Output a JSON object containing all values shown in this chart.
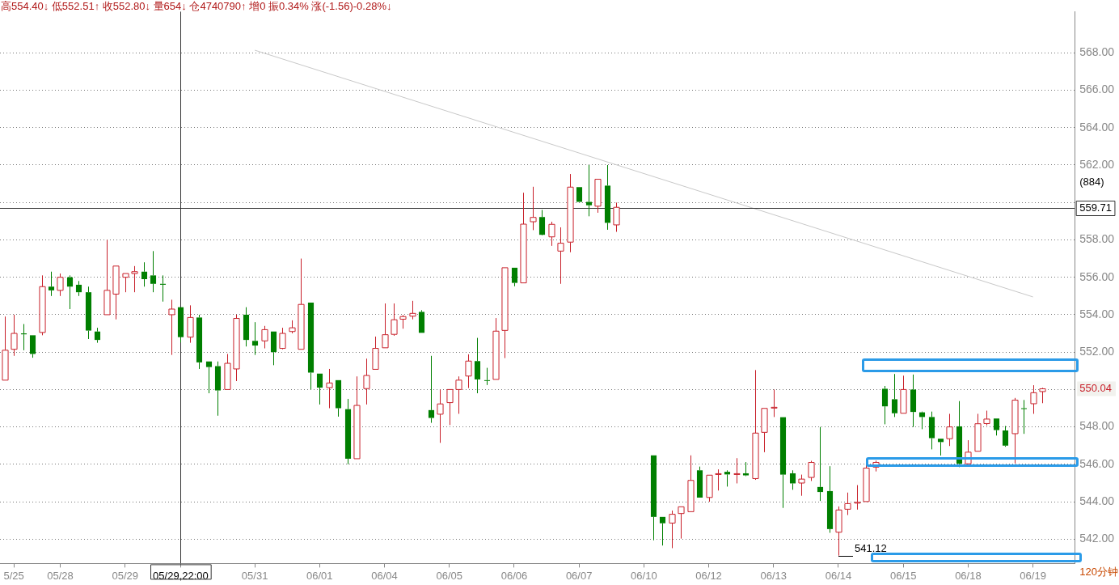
{
  "chart_data": {
    "type": "candlestick",
    "subtitle": "高554.40↓ 低552.51↑ 收552.80↓ 量654↓ 仓4740790↑ 增0 振0.34% 涨(-1.56)-0.28%↓",
    "categories": [
      null,
      "5/25",
      null,
      null,
      null,
      null,
      "05/28",
      null,
      null,
      null,
      null,
      null,
      null,
      "05/29",
      null,
      null,
      null,
      null,
      null,
      "05/29,22:00",
      null,
      null,
      null,
      null,
      null,
      null,
      null,
      "05/31",
      null,
      null,
      null,
      null,
      null,
      null,
      "06/01",
      null,
      null,
      null,
      null,
      null,
      null,
      "06/04",
      null,
      null,
      null,
      null,
      null,
      null,
      "06/05",
      null,
      null,
      null,
      null,
      null,
      null,
      "06/06",
      null,
      null,
      null,
      null,
      null,
      null,
      "06/07",
      null,
      null,
      null,
      null,
      null,
      null,
      "06/10",
      null,
      null,
      null,
      null,
      null,
      null,
      "06/12",
      null,
      null,
      null,
      null,
      null,
      null,
      "06/13",
      null,
      null,
      null,
      null,
      null,
      null,
      "06/14",
      null,
      null,
      null,
      null,
      null,
      null,
      "06/15",
      null,
      null,
      null,
      null,
      null,
      null,
      "06/18",
      null,
      null,
      null,
      null,
      null,
      null,
      "06/19",
      null,
      null,
      null,
      null
    ],
    "ohlc": [
      [
        550.5,
        553.9,
        550.5,
        552.1
      ],
      [
        552.15,
        554.0,
        551.8,
        553.0
      ],
      [
        553.0,
        553.5,
        552.1,
        552.95
      ],
      [
        552.9,
        552.9,
        551.7,
        551.9
      ],
      [
        553.05,
        556.1,
        552.9,
        555.5
      ],
      [
        555.5,
        556.3,
        555.0,
        555.3
      ],
      [
        555.3,
        556.2,
        555.0,
        556.0
      ],
      [
        556.0,
        556.1,
        554.3,
        555.5
      ],
      [
        555.6,
        555.8,
        555.0,
        555.2
      ],
      [
        555.2,
        555.5,
        552.7,
        553.15
      ],
      [
        553.1,
        553.3,
        552.5,
        552.65
      ],
      [
        554.0,
        558.0,
        554.0,
        555.3
      ],
      [
        555.1,
        556.6,
        553.75,
        556.6
      ],
      [
        556.0,
        556.2,
        555.2,
        556.2
      ],
      [
        556.2,
        556.6,
        555.2,
        556.3
      ],
      [
        556.3,
        556.8,
        555.5,
        555.9
      ],
      [
        556.1,
        557.4,
        555.2,
        555.65
      ],
      [
        555.65,
        556.1,
        554.7,
        555.6
      ],
      [
        554.0,
        554.8,
        551.85,
        554.3
      ],
      [
        554.4,
        554.4,
        552.51,
        552.8
      ],
      [
        552.8,
        554.5,
        552.5,
        553.85
      ],
      [
        553.85,
        554.0,
        551.1,
        551.45
      ],
      [
        551.5,
        551.5,
        549.8,
        551.2
      ],
      [
        551.25,
        551.5,
        548.6,
        549.95
      ],
      [
        550.0,
        551.9,
        550.0,
        551.4
      ],
      [
        551.1,
        554.0,
        550.45,
        553.8
      ],
      [
        554.0,
        554.4,
        552.3,
        552.65
      ],
      [
        552.6,
        553.6,
        551.85,
        552.35
      ],
      [
        552.6,
        553.4,
        552.2,
        553.2
      ],
      [
        553.1,
        553.1,
        551.3,
        552.0
      ],
      [
        552.2,
        553.3,
        552.15,
        553.0
      ],
      [
        553.1,
        553.7,
        553.0,
        553.3
      ],
      [
        552.15,
        557.0,
        552.15,
        554.55
      ],
      [
        554.65,
        554.65,
        550.0,
        550.9
      ],
      [
        550.85,
        550.85,
        549.2,
        550.1
      ],
      [
        550.1,
        551.1,
        549.0,
        550.35
      ],
      [
        550.5,
        550.5,
        548.55,
        549.0
      ],
      [
        548.95,
        549.5,
        546.0,
        546.3
      ],
      [
        546.3,
        550.7,
        546.3,
        549.15
      ],
      [
        550.05,
        551.65,
        549.2,
        550.75
      ],
      [
        551.08,
        552.83,
        551.08,
        552.2
      ],
      [
        552.23,
        554.6,
        552.23,
        552.93
      ],
      [
        552.95,
        554.6,
        552.87,
        553.73
      ],
      [
        553.76,
        553.98,
        553.25,
        553.9
      ],
      [
        553.92,
        554.74,
        553.75,
        554.07
      ],
      [
        554.15,
        554.24,
        553.03,
        553.03
      ],
      [
        548.9,
        551.8,
        548.22,
        548.48
      ],
      [
        548.68,
        550.0,
        547.15,
        549.23
      ],
      [
        549.3,
        550.0,
        548.1,
        550.0
      ],
      [
        550.0,
        550.7,
        548.7,
        550.5
      ],
      [
        550.72,
        551.88,
        550.08,
        551.52
      ],
      [
        551.52,
        552.76,
        549.8,
        550.54
      ],
      [
        550.5,
        551.16,
        550.24,
        550.48
      ],
      [
        550.54,
        553.82,
        550.54,
        553.12
      ],
      [
        553.16,
        556.51,
        551.68,
        556.51
      ],
      [
        556.51,
        556.51,
        555.52,
        555.7
      ],
      [
        555.7,
        560.52,
        555.7,
        558.84
      ],
      [
        558.97,
        560.84,
        558.52,
        559.2
      ],
      [
        559.22,
        559.6,
        558.24,
        558.27
      ],
      [
        558.16,
        558.97,
        557.68,
        558.83
      ],
      [
        557.4,
        558.67,
        555.65,
        557.82
      ],
      [
        557.88,
        561.52,
        557.34,
        560.82
      ],
      [
        560.82,
        560.82,
        560.03,
        560.03
      ],
      [
        560.03,
        562.0,
        559.26,
        559.85
      ],
      [
        559.8,
        561.24,
        559.45,
        561.24
      ],
      [
        560.9,
        562.0,
        558.54,
        558.91
      ],
      [
        558.8,
        559.99,
        558.43,
        559.74
      ],
      null,
      null,
      null,
      [
        546.48,
        546.48,
        541.94,
        543.19
      ],
      [
        543.19,
        543.19,
        541.66,
        542.85
      ],
      [
        542.86,
        543.53,
        541.52,
        543.33
      ],
      [
        543.37,
        543.73,
        542.03,
        543.73
      ],
      [
        543.47,
        546.48,
        543.47,
        545.14
      ],
      [
        545.68,
        545.88,
        544.22,
        544.22
      ],
      [
        544.23,
        545.42,
        544.0,
        545.42
      ],
      [
        545.48,
        545.73,
        544.6,
        545.5
      ],
      [
        545.6,
        545.68,
        544.81,
        545.46
      ],
      [
        545.48,
        546.33,
        544.98,
        545.5
      ],
      [
        545.52,
        546.12,
        545.37,
        545.41
      ],
      [
        545.24,
        551.04,
        545.17,
        547.67
      ],
      [
        547.71,
        548.99,
        546.65,
        548.99
      ],
      [
        549.03,
        550.0,
        548.53,
        549.05
      ],
      [
        548.52,
        548.52,
        543.67,
        545.45
      ],
      [
        545.52,
        545.68,
        544.64,
        544.98
      ],
      [
        545.0,
        545.45,
        544.32,
        545.21
      ],
      [
        545.3,
        546.19,
        545.11,
        546.1
      ],
      [
        544.79,
        548.0,
        544.04,
        544.52
      ],
      [
        544.57,
        545.9,
        542.34,
        542.54
      ],
      [
        542.37,
        543.75,
        541.12,
        543.56
      ],
      [
        543.6,
        544.49,
        543.29,
        543.9
      ],
      [
        543.95,
        544.89,
        543.58,
        543.97
      ],
      [
        544.01,
        546.0,
        544.01,
        545.8
      ],
      [
        545.85,
        546.2,
        545.62,
        546.1
      ],
      [
        550.04,
        550.19,
        548.14,
        549.1
      ],
      [
        549.48,
        550.83,
        548.53,
        548.73
      ],
      [
        548.73,
        550.74,
        548.73,
        550.0
      ],
      [
        550.0,
        550.8,
        548.0,
        548.8
      ],
      [
        548.78,
        548.82,
        547.88,
        548.53
      ],
      [
        548.53,
        548.82,
        546.8,
        547.4
      ],
      [
        547.37,
        547.37,
        546.47,
        547.19
      ],
      [
        547.37,
        548.7,
        546.98,
        548.0
      ],
      [
        548.03,
        549.38,
        545.85,
        546.03
      ],
      [
        546.03,
        547.29,
        546.03,
        546.65
      ],
      [
        546.7,
        548.7,
        546.7,
        548.17
      ],
      [
        548.18,
        548.87,
        548.08,
        548.42
      ],
      [
        548.45,
        548.45,
        547.54,
        547.83
      ],
      [
        547.81,
        548.05,
        546.94,
        547.0
      ],
      [
        547.64,
        549.55,
        546.05,
        549.43
      ],
      [
        549.0,
        549.44,
        547.63,
        548.99
      ],
      [
        549.24,
        550.23,
        548.7,
        549.83
      ],
      [
        549.89,
        550.09,
        549.27,
        550.04
      ],
      null,
      null,
      null
    ],
    "series": [
      {
        "type": "line",
        "x": [
          "05/31",
          "06/19"
        ],
        "values": [
          568.14,
          554.95
        ],
        "color": "#c8c8c8"
      }
    ],
    "ylim": [
      540.7,
      570.2
    ],
    "yticks": [
      {
        "value": 542,
        "label": "542.00"
      },
      {
        "value": 544,
        "label": "544.00"
      },
      {
        "value": 546,
        "label": "546.00"
      },
      {
        "value": 548,
        "label": "548.00"
      },
      {
        "value": 550,
        "label": null
      },
      {
        "value": 552,
        "label": "552.00"
      },
      {
        "value": 554,
        "label": "554.00"
      },
      {
        "value": 556,
        "label": "556.00"
      },
      {
        "value": 558,
        "label": "558.00"
      },
      {
        "value": 560,
        "label": null
      },
      {
        "value": 562,
        "label": "562.00"
      },
      {
        "value": 564,
        "label": "564.00"
      },
      {
        "value": 566,
        "label": "566.00"
      },
      {
        "value": 568,
        "label": "568.00"
      }
    ],
    "grid": "y",
    "ref_lines": [
      {
        "axis": "y",
        "value": 559.71,
        "label": "559.71",
        "color": "#333333"
      },
      {
        "axis": "x",
        "value": "05/29,22:00",
        "color": "#333333"
      }
    ],
    "annotations": [
      "(884)",
      "120分钟",
      "550.04",
      {
        "text": "541.12",
        "x": "06/14",
        "y": 541.12
      }
    ]
  }
}
